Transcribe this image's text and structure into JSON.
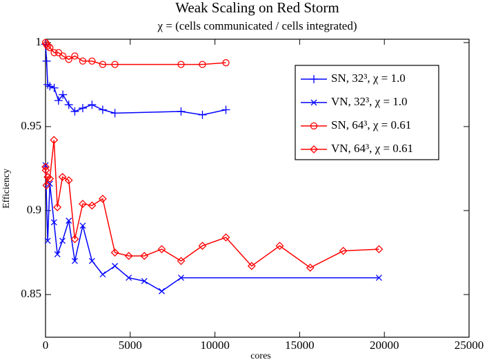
{
  "chart_data": {
    "type": "line",
    "title": "Weak Scaling on Red Storm",
    "subtitle": "χ = (cells communicated / cells integrated)",
    "x_label": "cores",
    "y_label": "Efficiency",
    "xlim": [
      0,
      25000
    ],
    "xticks": [
      0,
      5000,
      10000,
      15000,
      20000,
      25000
    ],
    "ylim": [
      0.8246,
      1.002
    ],
    "yticks": [
      0.85,
      0.9,
      0.95,
      1
    ],
    "legend": "upper right",
    "series": [
      {
        "name": "SN, 32³, χ = 1.0",
        "color": "#0000ff",
        "marker": "plus",
        "x": [
          1,
          64,
          128,
          256,
          512,
          768,
          1024,
          1372,
          1728,
          2197,
          2744,
          3375,
          4096,
          8000,
          9261,
          10648
        ],
        "values": [
          0.999,
          0.989,
          0.975,
          0.974,
          0.973,
          0.9655,
          0.969,
          0.963,
          0.959,
          0.961,
          0.963,
          0.96,
          0.958,
          0.959,
          0.957,
          0.96
        ]
      },
      {
        "name": "VN, 32³, χ = 1.0",
        "color": "#0000ff",
        "marker": "cross",
        "x": [
          2,
          128,
          256,
          500,
          700,
          1000,
          1372,
          1728,
          2197,
          2744,
          3375,
          4096,
          4913,
          5832,
          6859,
          8000,
          19683
        ],
        "values": [
          0.927,
          0.882,
          0.916,
          0.893,
          0.874,
          0.882,
          0.894,
          0.87,
          0.891,
          0.87,
          0.862,
          0.867,
          0.86,
          0.858,
          0.852,
          0.86,
          0.86
        ]
      },
      {
        "name": "SN, 64³, χ = 0.61",
        "color": "#ff0000",
        "marker": "circle",
        "x": [
          1,
          64,
          128,
          256,
          512,
          768,
          1024,
          1372,
          1728,
          2197,
          2744,
          3375,
          4096,
          8000,
          9261,
          10648
        ],
        "values": [
          1.0,
          0.999,
          0.998,
          0.997,
          0.994,
          0.994,
          0.992,
          0.99,
          0.992,
          0.989,
          0.989,
          0.987,
          0.987,
          0.987,
          0.987,
          0.988
        ]
      },
      {
        "name": "VN, 64³, χ = 0.61",
        "color": "#ff0000",
        "marker": "diamond",
        "x": [
          2,
          16,
          54,
          128,
          250,
          500,
          700,
          1000,
          1372,
          1728,
          2197,
          2744,
          3375,
          4096,
          4913,
          5832,
          6859,
          8000,
          9261,
          10648,
          12167,
          13824,
          15625,
          17576,
          19683
        ],
        "values": [
          0.926,
          0.924,
          0.915,
          0.92,
          0.919,
          0.942,
          0.902,
          0.92,
          0.918,
          0.883,
          0.904,
          0.903,
          0.907,
          0.875,
          0.873,
          0.873,
          0.877,
          0.87,
          0.879,
          0.884,
          0.867,
          0.879,
          0.866,
          0.876,
          0.877
        ]
      }
    ]
  }
}
